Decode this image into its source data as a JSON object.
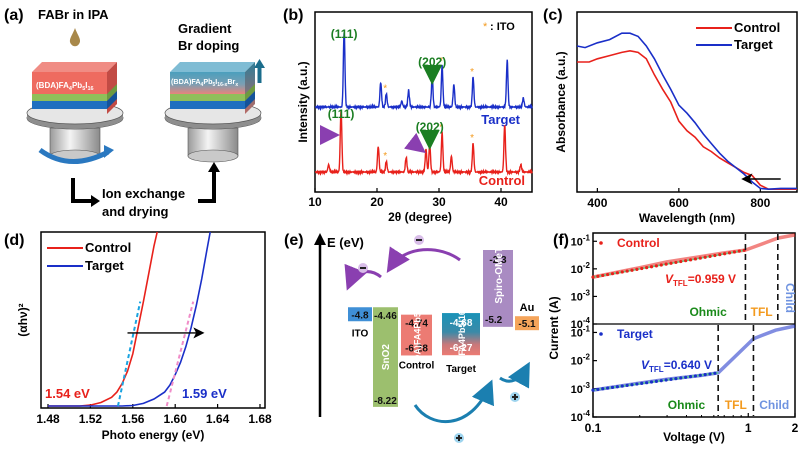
{
  "figure": {
    "panel_labels": [
      "(a)",
      "(b)",
      "(c)",
      "(d)",
      "(e)",
      "(f)"
    ]
  },
  "panel_a": {
    "step1_title": "FABr in IPA",
    "step2_title_line1": "Gradient",
    "step2_title_line2": "Br doping",
    "film_control": "(BDA)FA4Pb5I16",
    "film_target": "(BDA)FA4Pb5I16-xBrx",
    "process_line1": "Ion exchange",
    "process_line2": "and drying",
    "colors": {
      "perovskite": "#ee6b60",
      "target_top": "#4b9fbd",
      "green_layer": "#8fbf5a",
      "blue_layer": "#1f6fc0",
      "droplet": "#a8884a",
      "arrow": "#2a78c0",
      "up_arrow": "#1b6d8c"
    }
  },
  "chart_data": [
    {
      "panel": "(b)",
      "type": "line",
      "title": "",
      "xlabel": "2θ (degree)",
      "ylabel": "Intensity (a.u.)",
      "xlim": [
        10,
        45
      ],
      "xticks": [
        10,
        20,
        30,
        40
      ],
      "legend_note": ": ITO",
      "series": [
        {
          "name": "Target",
          "color": "#1a2fc8",
          "peaks": [
            {
              "x": 14.7,
              "h": 1.0
            },
            {
              "x": 20.6,
              "h": 0.33
            },
            {
              "x": 21.5,
              "h": 0.18,
              "ito": true
            },
            {
              "x": 24.0,
              "h": 0.08
            },
            {
              "x": 25.1,
              "h": 0.22
            },
            {
              "x": 28.9,
              "h": 0.4
            },
            {
              "x": 30.5,
              "h": 0.55,
              "ito": true
            },
            {
              "x": 32.4,
              "h": 0.3
            },
            {
              "x": 35.5,
              "h": 0.4,
              "ito": true
            },
            {
              "x": 41.0,
              "h": 0.62
            },
            {
              "x": 43.6,
              "h": 0.12
            }
          ]
        },
        {
          "name": "Control",
          "color": "#e8211b",
          "peaks": [
            {
              "x": 12.2,
              "h": 0.1
            },
            {
              "x": 14.2,
              "h": 0.85
            },
            {
              "x": 20.2,
              "h": 0.35
            },
            {
              "x": 21.5,
              "h": 0.15,
              "ito": true
            },
            {
              "x": 24.7,
              "h": 0.2
            },
            {
              "x": 27.9,
              "h": 0.32
            },
            {
              "x": 28.5,
              "h": 0.4
            },
            {
              "x": 30.5,
              "h": 0.55,
              "ito": true
            },
            {
              "x": 32.0,
              "h": 0.22
            },
            {
              "x": 35.5,
              "h": 0.4,
              "ito": true
            },
            {
              "x": 40.6,
              "h": 0.66
            },
            {
              "x": 43.2,
              "h": 0.1
            }
          ]
        }
      ],
      "annotations": [
        {
          "text": "(111)",
          "series": "Target",
          "x": 14.7
        },
        {
          "text": "(202)",
          "series": "Target",
          "x": 28.9
        },
        {
          "text": "(111)",
          "series": "Control",
          "x": 14.2
        },
        {
          "text": "(202)",
          "series": "Control",
          "x": 28.5
        }
      ],
      "series_labels": {
        "Target": "Target",
        "Control": "Control"
      }
    },
    {
      "panel": "(c)",
      "type": "line",
      "xlabel": "Wavelength (nm)",
      "ylabel": "Absorbance (a.u.)",
      "xlim": [
        350,
        890
      ],
      "ylim": [
        0,
        1
      ],
      "xticks": [
        400,
        600,
        800
      ],
      "legend": "top-right",
      "series": [
        {
          "name": "Control",
          "color": "#e8211b",
          "x": [
            350,
            380,
            400,
            430,
            460,
            480,
            500,
            520,
            540,
            560,
            580,
            600,
            620,
            640,
            660,
            680,
            700,
            720,
            740,
            760,
            780,
            800,
            820,
            850,
            890
          ],
          "y": [
            0.8,
            0.8,
            0.82,
            0.84,
            0.86,
            0.87,
            0.86,
            0.82,
            0.72,
            0.63,
            0.55,
            0.43,
            0.37,
            0.33,
            0.27,
            0.24,
            0.2,
            0.17,
            0.14,
            0.11,
            0.09,
            0.03,
            0.005,
            0.005,
            0.005
          ]
        },
        {
          "name": "Target",
          "color": "#1a2fc8",
          "x": [
            350,
            370,
            400,
            430,
            460,
            480,
            500,
            520,
            540,
            560,
            580,
            600,
            620,
            640,
            660,
            680,
            700,
            720,
            740,
            760,
            780,
            800,
            820,
            850,
            890
          ],
          "y": [
            0.9,
            0.89,
            0.92,
            0.94,
            0.98,
            0.98,
            0.96,
            0.9,
            0.82,
            0.72,
            0.63,
            0.53,
            0.48,
            0.42,
            0.35,
            0.29,
            0.23,
            0.18,
            0.14,
            0.1,
            0.05,
            0.01,
            0.005,
            0.01,
            0.01
          ]
        }
      ],
      "arrow": {
        "from": 850,
        "to": 760
      }
    },
    {
      "panel": "(d)",
      "type": "line",
      "xlabel": "Photo energy (eV)",
      "ylabel": "(αhν)²",
      "xlim": [
        1.48,
        1.68
      ],
      "ylim": [
        0,
        1
      ],
      "xticks": [
        1.48,
        1.52,
        1.56,
        1.6,
        1.64,
        1.68
      ],
      "legend": "top-left",
      "series": [
        {
          "name": "Control",
          "color": "#e8211b",
          "x": [
            1.48,
            1.51,
            1.52,
            1.53,
            1.54,
            1.545,
            1.55,
            1.555,
            1.56,
            1.565,
            1.57,
            1.575,
            1.58,
            1.583
          ],
          "y": [
            0,
            0,
            0.005,
            0.02,
            0.05,
            0.08,
            0.13,
            0.2,
            0.3,
            0.45,
            0.6,
            0.76,
            0.92,
            1.0
          ]
        },
        {
          "name": "Target",
          "color": "#1a2fc8",
          "x": [
            1.48,
            1.55,
            1.56,
            1.57,
            1.58,
            1.59,
            1.595,
            1.6,
            1.605,
            1.61,
            1.615,
            1.62,
            1.625,
            1.63,
            1.633
          ],
          "y": [
            0,
            0,
            0.003,
            0.015,
            0.04,
            0.08,
            0.12,
            0.18,
            0.25,
            0.34,
            0.45,
            0.58,
            0.73,
            0.9,
            1.0
          ]
        }
      ],
      "fits": [
        {
          "series": "Control",
          "color": "#1aa3e0",
          "x0": 1.546,
          "x1": 1.567,
          "y1": 0.6
        },
        {
          "series": "Target",
          "color": "#f08cc8",
          "x0": 1.592,
          "x1": 1.617,
          "y1": 0.6
        }
      ],
      "annotations": [
        {
          "text": "1.54 eV",
          "color": "#e8211b"
        },
        {
          "text": "1.59 eV",
          "color": "#1a2fc8"
        }
      ],
      "arrow": {
        "from": 1.555,
        "to": 1.625,
        "y": 0.42
      }
    },
    {
      "panel": "(e)",
      "type": "diagram",
      "ylabel": "E (eV)",
      "levels": [
        {
          "name": "ITO",
          "top": -4.8,
          "color": "#3f8fd6",
          "label": "ITO"
        },
        {
          "name": "SnO2",
          "top": -4.46,
          "bottom": -8.22,
          "color": "#9cbf6e",
          "label": "SnO2"
        },
        {
          "name": "Control perovskite",
          "top": -4.74,
          "bottom": -6.28,
          "color": "#ec7b73",
          "label": "(BDA)FA4Pb5I16",
          "caption": "Control"
        },
        {
          "name": "Target perovskite",
          "top": -4.68,
          "bottom": -6.27,
          "color": "#1f8fb0",
          "label": "(BDA)FA4Pb5I16-xBrx",
          "caption": "Target"
        },
        {
          "name": "Spiro-OMeTAD",
          "top": -2.3,
          "bottom": -5.2,
          "color": "#a98bc2",
          "label": "Spiro-OMeTAD"
        },
        {
          "name": "Au",
          "top": -5.1,
          "color": "#f5a55b",
          "label": "Au"
        }
      ],
      "charges": {
        "electron": "−",
        "hole": "+"
      }
    },
    {
      "panel": "(f)",
      "type": "scatter",
      "xscale": "log",
      "yscale": "log",
      "xlabel": "Voltage (V)",
      "ylabel": "Current (A)",
      "xlim": [
        0.1,
        2
      ],
      "ylim": [
        0.0001,
        0.2
      ],
      "xticks": [
        0.1,
        1,
        2
      ],
      "yticks": [
        "10-1",
        "10-2",
        "10-3",
        "10-4"
      ],
      "subplots": [
        {
          "name": "Control",
          "color": "#e8211b",
          "vtfl": "V_TFL=0.959 V",
          "vtfl_value": 0.959,
          "child_onset": 1.55,
          "regions": [
            "Ohmic",
            "TFL",
            "Child"
          ],
          "points": [
            [
              0.1,
              0.005
            ],
            [
              0.2,
              0.011
            ],
            [
              0.3,
              0.018
            ],
            [
              0.5,
              0.028
            ],
            [
              0.7,
              0.038
            ],
            [
              0.959,
              0.048
            ],
            [
              1.3,
              0.09
            ],
            [
              1.55,
              0.13
            ],
            [
              2.0,
              0.17
            ]
          ]
        },
        {
          "name": "Target",
          "color": "#1a2fc8",
          "vtfl": "V_TFL=0.640 V",
          "vtfl_value": 0.64,
          "child_onset": 1.08,
          "regions": [
            "Ohmic",
            "TFL",
            "Child"
          ],
          "points": [
            [
              0.1,
              0.0009
            ],
            [
              0.2,
              0.0016
            ],
            [
              0.3,
              0.0022
            ],
            [
              0.5,
              0.003
            ],
            [
              0.64,
              0.0037
            ],
            [
              0.8,
              0.012
            ],
            [
              1.08,
              0.06
            ],
            [
              1.5,
              0.12
            ],
            [
              2.0,
              0.17
            ]
          ]
        }
      ],
      "region_colors": {
        "Ohmic": "#1a8a1a",
        "TFL": "#f39a1e",
        "Child": "#6f93e0"
      },
      "fit_color": "#5fd08a"
    }
  ]
}
